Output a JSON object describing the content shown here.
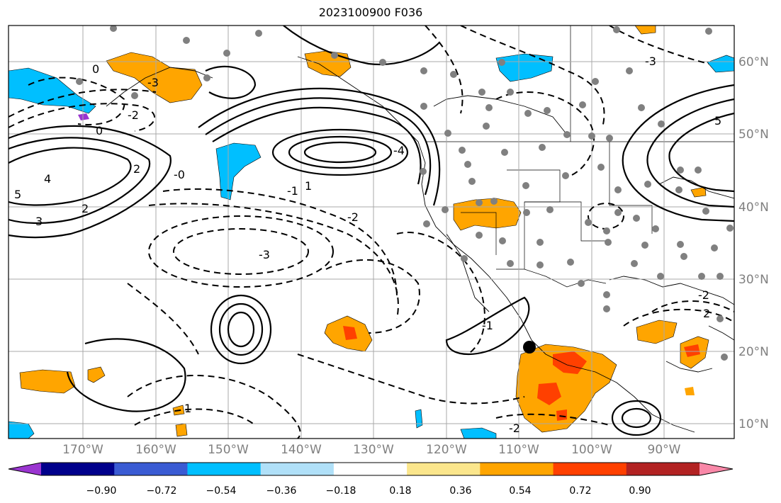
{
  "title": "2023100900 F036",
  "lon_labels": [
    "170°W",
    "160°W",
    "150°W",
    "140°W",
    "130°W",
    "120°W",
    "110°W",
    "100°W",
    "90°W"
  ],
  "lat_labels": [
    "60°N",
    "50°N",
    "40°N",
    "30°N",
    "20°N",
    "10°N"
  ],
  "colorbar": {
    "ticks": [
      "−0.90",
      "−0.72",
      "−0.54",
      "−0.36",
      "−0.18",
      "0.18",
      "0.36",
      "0.54",
      "0.72",
      "0.90"
    ],
    "colors": [
      "#9a35d0",
      "#00008b",
      "#3a5bd3",
      "#00bfff",
      "#b0e0f8",
      "#ffffff",
      "#fbe68c",
      "#ffa500",
      "#ff4000",
      "#b22222",
      "#f988a8"
    ]
  },
  "contour_labels": [
    "0",
    "-2",
    "-3",
    "4",
    "5",
    "3",
    "2",
    "-1",
    "1",
    "-2",
    "-3",
    "-0",
    "0",
    "2",
    "-4",
    "5",
    "-1",
    "-2",
    "2",
    "-3",
    "1",
    "-2"
  ],
  "colors": {
    "grid": "#a9a9a9",
    "orange": "#ffa500",
    "red": "#ff4000",
    "blue": "#00bfff",
    "dot": "#808080"
  }
}
